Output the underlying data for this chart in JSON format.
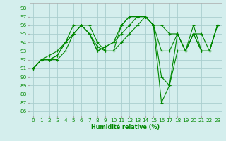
{
  "xlabel": "Humidité relative (%)",
  "bg_color": "#d4eeed",
  "grid_color": "#aacece",
  "line_color": "#008800",
  "ylim": [
    85.5,
    98.6
  ],
  "xlim": [
    -0.5,
    23.5
  ],
  "yticks": [
    86,
    87,
    88,
    89,
    90,
    91,
    92,
    93,
    94,
    95,
    96,
    97,
    98
  ],
  "xticks": [
    0,
    1,
    2,
    3,
    4,
    5,
    6,
    7,
    8,
    9,
    10,
    11,
    12,
    13,
    14,
    15,
    16,
    17,
    18,
    19,
    20,
    21,
    22,
    23
  ],
  "lines": [
    [
      91,
      92,
      92,
      92,
      93,
      95,
      96,
      96,
      94,
      93,
      93,
      94,
      95,
      96,
      97,
      96,
      96,
      95,
      95,
      93,
      95,
      93,
      93,
      96
    ],
    [
      91,
      92,
      92,
      92.5,
      94,
      95,
      96,
      95,
      93,
      93.5,
      94,
      95,
      96,
      97,
      97,
      96,
      93,
      93,
      95,
      93,
      95,
      93,
      93,
      96
    ],
    [
      91,
      92,
      92,
      92.5,
      94,
      95,
      96,
      95,
      93,
      93.5,
      94,
      96,
      97,
      97,
      97,
      96,
      90,
      89,
      95,
      93,
      95,
      95,
      93,
      96
    ],
    [
      91,
      92,
      92.5,
      93,
      94,
      96,
      96,
      95,
      93.5,
      93,
      93,
      96,
      97,
      97,
      97,
      96,
      87,
      89,
      93,
      93,
      96,
      93,
      93,
      96
    ]
  ]
}
